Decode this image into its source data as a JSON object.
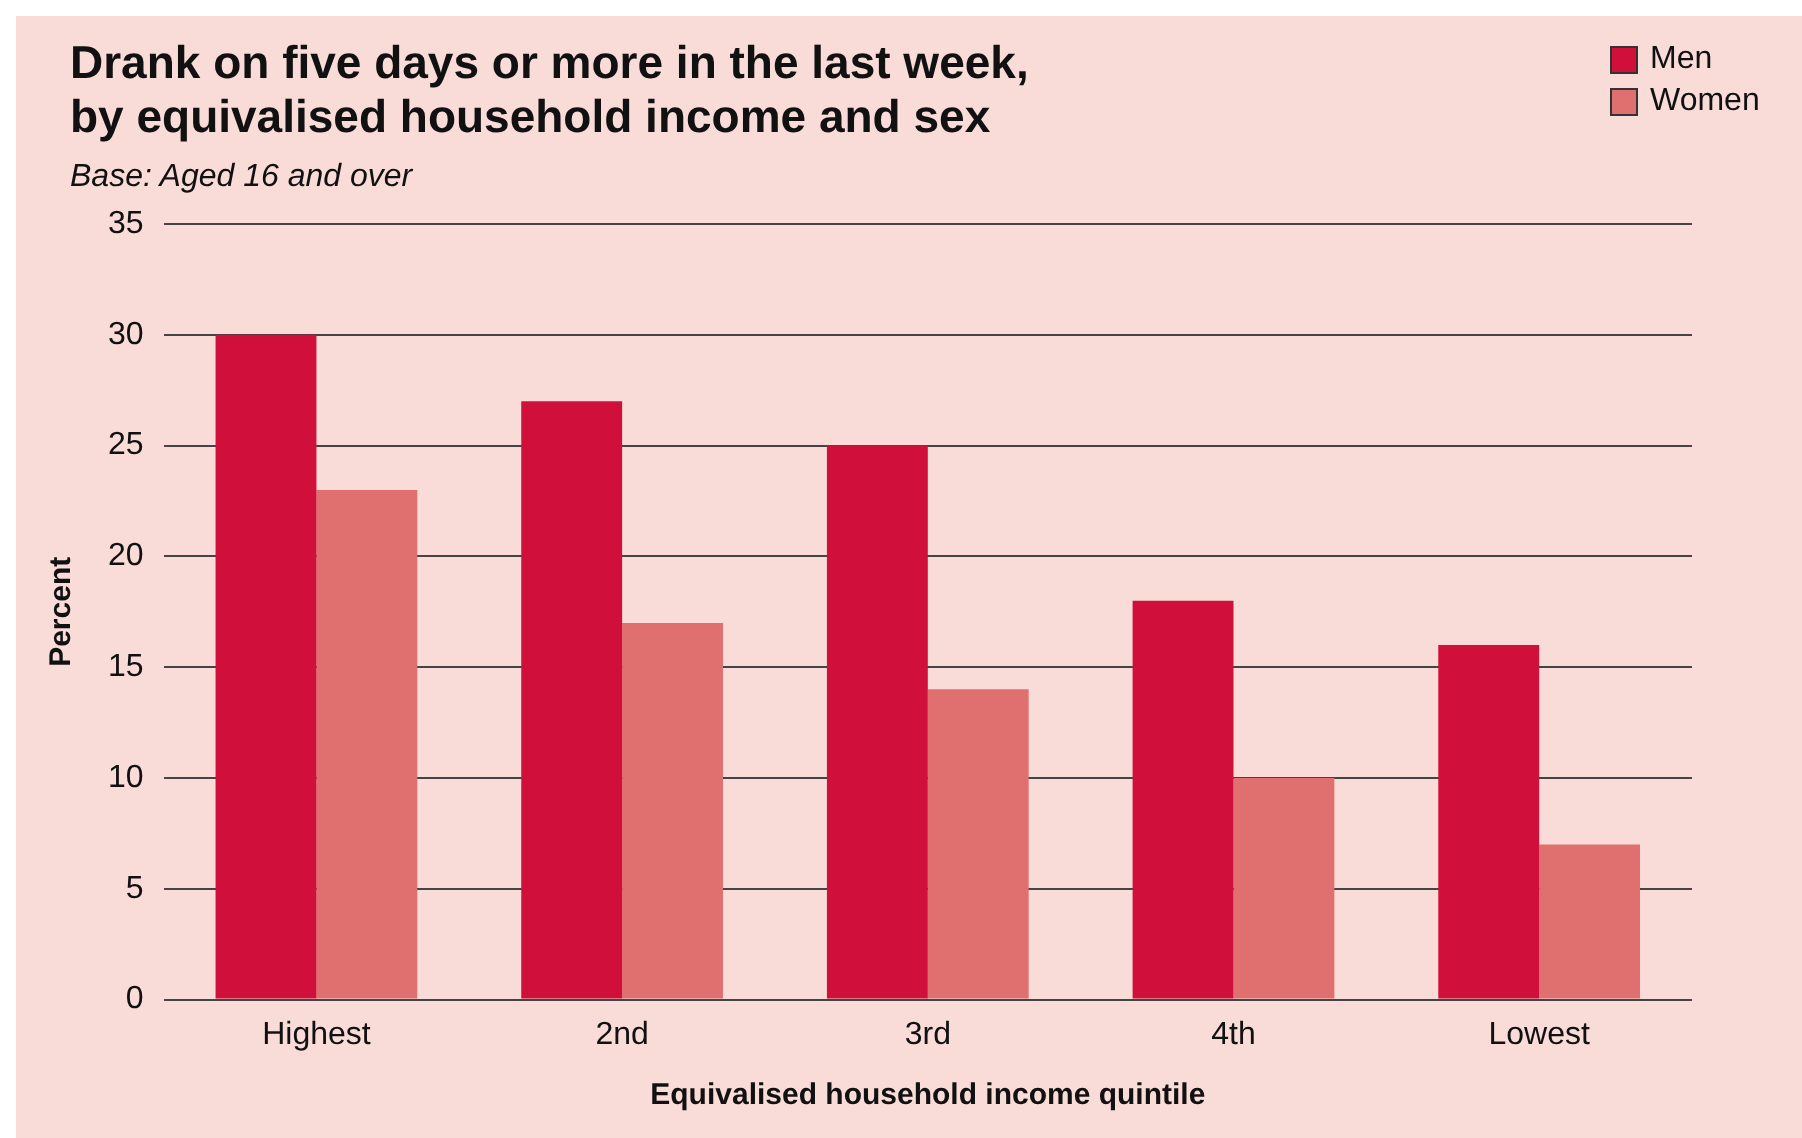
{
  "chart_data": {
    "type": "bar",
    "title": "Drank on five days or more in the last week,\nby equivalised household income and sex",
    "subtitle": "Base: Aged 16 and over",
    "xlabel": "Equivalised household income quintile",
    "ylabel": "Percent",
    "categories": [
      "Highest",
      "2nd",
      "3rd",
      "4th",
      "Lowest"
    ],
    "series": [
      {
        "name": "Men",
        "color": "#d0103a",
        "values": [
          30,
          27,
          25,
          18,
          16
        ]
      },
      {
        "name": "Women",
        "color": "#e07070",
        "values": [
          23,
          17,
          14,
          10,
          7
        ]
      }
    ],
    "ylim": [
      0,
      35
    ],
    "yticks": [
      0,
      5,
      10,
      15,
      20,
      25,
      30,
      35
    ],
    "grid": "y",
    "legend": "top right"
  }
}
